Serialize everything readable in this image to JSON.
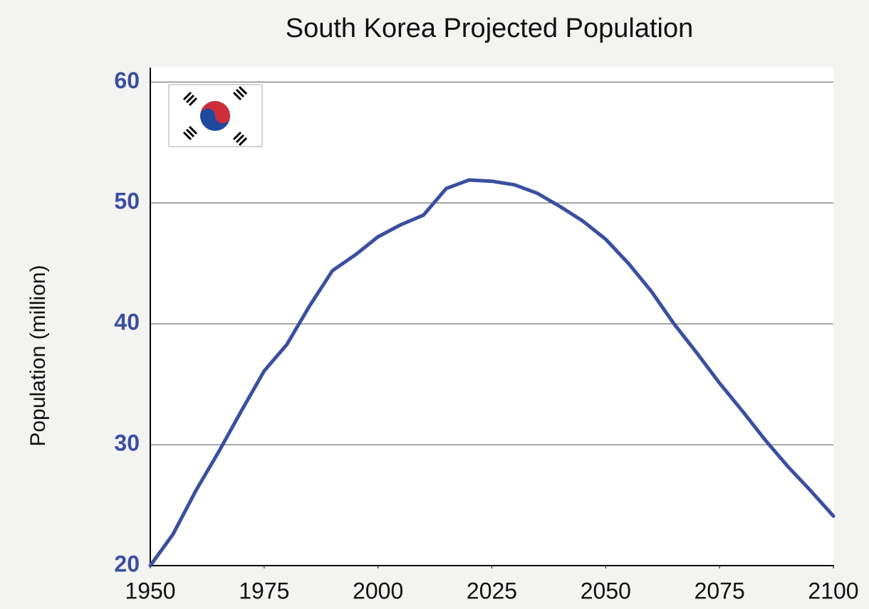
{
  "chart_data": {
    "type": "line",
    "title": "South Korea Projected Population",
    "y_label": "Population (million)",
    "x": [
      1950,
      1955,
      1960,
      1965,
      1970,
      1975,
      1980,
      1985,
      1990,
      1995,
      2000,
      2005,
      2010,
      2015,
      2020,
      2025,
      2030,
      2035,
      2040,
      2045,
      2050,
      2055,
      2060,
      2065,
      2070,
      2075,
      2080,
      2085,
      2090,
      2095,
      2100
    ],
    "series": [
      {
        "name": "South Korea",
        "color": "#3b4fa0",
        "values": [
          20.0,
          22.6,
          26.2,
          29.4,
          32.8,
          36.1,
          38.3,
          41.5,
          44.4,
          45.7,
          47.2,
          48.2,
          49.0,
          51.2,
          51.9,
          51.8,
          51.5,
          50.8,
          49.7,
          48.5,
          47.0,
          45.0,
          42.7,
          40.0,
          37.6,
          35.1,
          32.8,
          30.4,
          28.2,
          26.2,
          24.1
        ]
      }
    ],
    "xlim": [
      1950,
      2100
    ],
    "xticks": [
      1950,
      1975,
      2000,
      2025,
      2050,
      2075,
      2100
    ],
    "ylim": [
      20,
      61.2
    ],
    "yticks": [
      20,
      30,
      40,
      50,
      60
    ],
    "grid": true
  }
}
